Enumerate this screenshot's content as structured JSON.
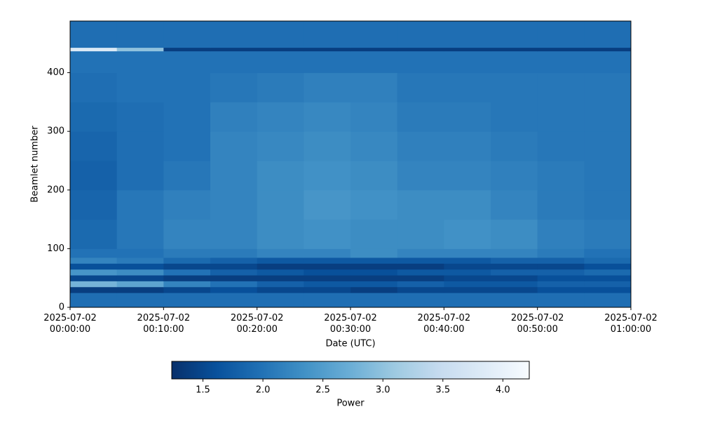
{
  "chart_data": {
    "type": "heatmap",
    "xlabel": "Date (UTC)",
    "ylabel": "Beamlet number",
    "colorbar_label": "Power",
    "xlim": [
      "2025-07-02 00:00:00",
      "2025-07-02 01:00:00"
    ],
    "xticks": [
      "2025-07-02 00:00:00",
      "2025-07-02 00:10:00",
      "2025-07-02 00:20:00",
      "2025-07-02 00:30:00",
      "2025-07-02 00:40:00",
      "2025-07-02 00:50:00",
      "2025-07-02 01:00:00"
    ],
    "ylim": [
      0,
      488
    ],
    "yticks": [
      0,
      100,
      200,
      300,
      400
    ],
    "clim": [
      1.24,
      4.22
    ],
    "cticks": [
      1.5,
      {
        "value": 2,
        "label": "2.0"
      },
      2.5,
      {
        "value": 3,
        "label": "3.0"
      },
      3.5,
      {
        "value": 4,
        "label": "4.0"
      }
    ],
    "colormap": [
      "#08306b",
      "#08519c",
      "#2171b5",
      "#4292c6",
      "#6baed6",
      "#9ecae1",
      "#c6dbef",
      "#deebf7",
      "#f7fbff"
    ],
    "x_bins": [
      "2025-07-02 00:00:00",
      "2025-07-02 00:05:00",
      "2025-07-02 00:10:00",
      "2025-07-02 00:15:00",
      "2025-07-02 00:20:00",
      "2025-07-02 00:25:00",
      "2025-07-02 00:30:00",
      "2025-07-02 00:35:00",
      "2025-07-02 00:40:00",
      "2025-07-02 00:45:00",
      "2025-07-02 00:50:00",
      "2025-07-02 00:55:00",
      "2025-07-02 01:00:00"
    ],
    "y_bins": [
      0,
      25,
      35,
      45,
      55,
      65,
      75,
      85,
      100,
      150,
      200,
      250,
      300,
      350,
      400,
      437,
      443,
      488
    ],
    "z": [
      [
        1.95,
        1.95,
        1.95,
        1.95,
        1.95,
        1.95,
        1.95,
        1.95,
        1.95,
        1.95,
        1.95,
        1.95
      ],
      [
        1.4,
        1.4,
        1.5,
        1.6,
        1.5,
        1.5,
        1.4,
        1.5,
        1.5,
        1.5,
        1.6,
        1.6
      ],
      [
        2.8,
        2.6,
        2.2,
        2.0,
        1.8,
        1.7,
        1.7,
        1.8,
        1.7,
        1.7,
        1.8,
        1.8
      ],
      [
        1.5,
        1.5,
        1.4,
        1.4,
        1.4,
        1.4,
        1.4,
        1.4,
        1.5,
        1.5,
        1.6,
        1.6
      ],
      [
        2.4,
        2.3,
        2.0,
        1.8,
        1.7,
        1.6,
        1.6,
        1.7,
        1.7,
        1.8,
        1.8,
        1.9
      ],
      [
        1.6,
        1.6,
        1.5,
        1.5,
        1.4,
        1.4,
        1.4,
        1.4,
        1.5,
        1.5,
        1.5,
        1.6
      ],
      [
        2.2,
        2.1,
        1.9,
        1.8,
        1.7,
        1.7,
        1.7,
        1.7,
        1.7,
        1.8,
        1.8,
        1.9
      ],
      [
        2.0,
        2.0,
        2.1,
        2.1,
        2.2,
        2.2,
        2.3,
        2.2,
        2.2,
        2.2,
        2.1,
        2.0
      ],
      [
        1.9,
        2.05,
        2.2,
        2.2,
        2.3,
        2.35,
        2.3,
        2.3,
        2.35,
        2.3,
        2.15,
        2.1
      ],
      [
        1.85,
        2.05,
        2.15,
        2.2,
        2.3,
        2.4,
        2.35,
        2.3,
        2.3,
        2.2,
        2.1,
        2.05
      ],
      [
        1.8,
        1.95,
        2.05,
        2.2,
        2.3,
        2.35,
        2.3,
        2.2,
        2.2,
        2.15,
        2.1,
        2.05
      ],
      [
        1.85,
        1.95,
        2.0,
        2.2,
        2.25,
        2.3,
        2.25,
        2.15,
        2.15,
        2.1,
        2.05,
        2.05
      ],
      [
        1.9,
        1.95,
        2.0,
        2.15,
        2.2,
        2.25,
        2.2,
        2.1,
        2.1,
        2.05,
        2.05,
        2.05
      ],
      [
        1.95,
        2.0,
        2.0,
        2.05,
        2.1,
        2.15,
        2.15,
        2.05,
        2.05,
        2.05,
        2.05,
        2.05
      ],
      [
        2.0,
        2.0,
        2.0,
        2.0,
        2.0,
        2.0,
        2.0,
        2.0,
        2.0,
        2.0,
        2.0,
        2.0
      ],
      [
        3.8,
        3.0,
        1.4,
        1.4,
        1.4,
        1.4,
        1.4,
        1.4,
        1.4,
        1.4,
        1.4,
        1.4
      ],
      [
        1.95,
        1.95,
        1.95,
        1.95,
        1.95,
        1.95,
        1.95,
        1.95,
        1.95,
        1.95,
        1.95,
        1.95
      ]
    ]
  }
}
